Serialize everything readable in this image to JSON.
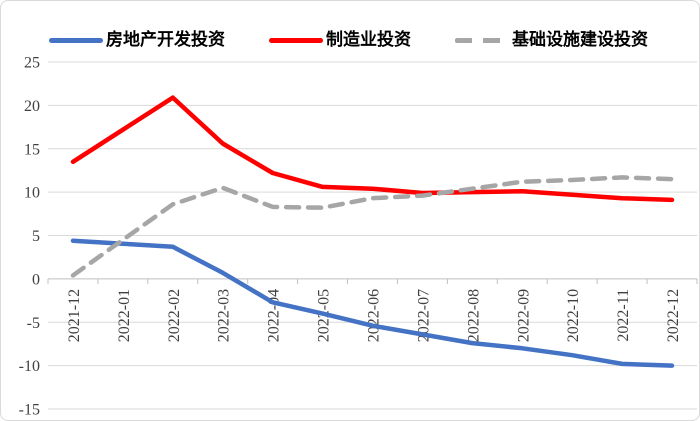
{
  "chart_data": {
    "type": "line",
    "title": "",
    "xlabel": "",
    "ylabel": "",
    "categories": [
      "2021-12",
      "2022-01",
      "2022-02",
      "2022-03",
      "2022-04",
      "2022-05",
      "2022-06",
      "2022-07",
      "2022-08",
      "2022-09",
      "2022-10",
      "2022-11",
      "2022-12"
    ],
    "series": [
      {
        "name": "房地产开发投资",
        "color": "#4472C4",
        "style": "solid",
        "values": [
          4.4,
          4.05,
          3.7,
          0.7,
          -2.7,
          -4.0,
          -5.4,
          -6.4,
          -7.4,
          -8.0,
          -8.8,
          -9.8,
          -10.0
        ]
      },
      {
        "name": "制造业投资",
        "color": "#FF0000",
        "style": "solid",
        "values": [
          13.5,
          17.2,
          20.9,
          15.6,
          12.2,
          10.6,
          10.4,
          9.9,
          10.0,
          10.1,
          9.7,
          9.3,
          9.1
        ]
      },
      {
        "name": "基础设施建设投资",
        "color": "#A6A6A6",
        "style": "dashed",
        "values": [
          0.4,
          4.5,
          8.6,
          10.5,
          8.3,
          8.2,
          9.3,
          9.6,
          10.4,
          11.2,
          11.4,
          11.7,
          11.5
        ]
      }
    ],
    "ylim": [
      -15,
      25
    ],
    "yticks": [
      25,
      20,
      15,
      10,
      5,
      0,
      -5,
      -10,
      -15
    ],
    "grid": true,
    "legend_position": "top",
    "colors": {
      "gridline": "#d9d9d9",
      "axis": "#bfbfbf",
      "tick_label": "#404040"
    }
  }
}
